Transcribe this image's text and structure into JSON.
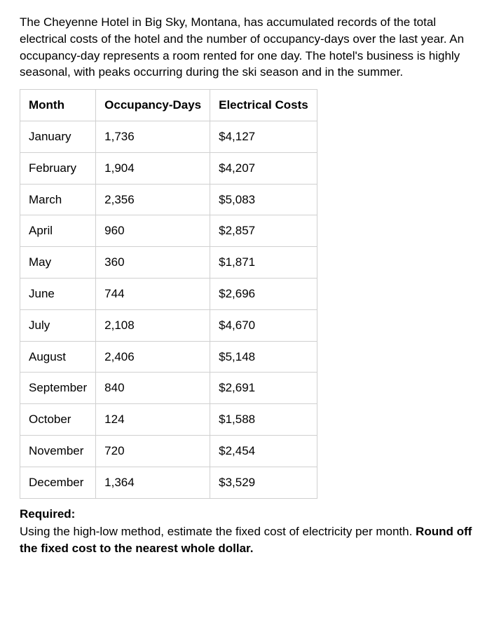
{
  "intro": "The Cheyenne Hotel in Big Sky, Montana, has accumulated records of the total electrical costs of the hotel and the number of occupancy-days over the last year. An occupancy-day represents a room rented for one day. The hotel's business is highly seasonal, with peaks occurring during the ski season and in the summer.",
  "table": {
    "columns": [
      "Month",
      "Occupancy-Days",
      "Electrical Costs"
    ],
    "rows": [
      [
        "January",
        "1,736",
        "$4,127"
      ],
      [
        "February",
        "1,904",
        "$4,207"
      ],
      [
        "March",
        "2,356",
        "$5,083"
      ],
      [
        "April",
        "960",
        "$2,857"
      ],
      [
        "May",
        "360",
        "$1,871"
      ],
      [
        "June",
        "744",
        "$2,696"
      ],
      [
        "July",
        "2,108",
        "$4,670"
      ],
      [
        "August",
        "2,406",
        "$5,148"
      ],
      [
        "September",
        "840",
        "$2,691"
      ],
      [
        "October",
        "124",
        "$1,588"
      ],
      [
        "November",
        "720",
        "$2,454"
      ],
      [
        "December",
        "1,364",
        "$3,529"
      ]
    ],
    "border_color": "#d0d0d0",
    "cell_padding": "10px 12px",
    "header_fontweight": "bold"
  },
  "required": {
    "label": "Required:",
    "text_part1": "Using the high-low method, estimate the fixed cost of electricity per month. ",
    "text_part2": "Round off the fixed cost to the nearest whole dollar."
  },
  "colors": {
    "background": "#ffffff",
    "text": "#000000",
    "border": "#d0d0d0"
  },
  "typography": {
    "font_family": "Arial, Helvetica, sans-serif",
    "body_fontsize": 17,
    "line_height": 1.4
  }
}
